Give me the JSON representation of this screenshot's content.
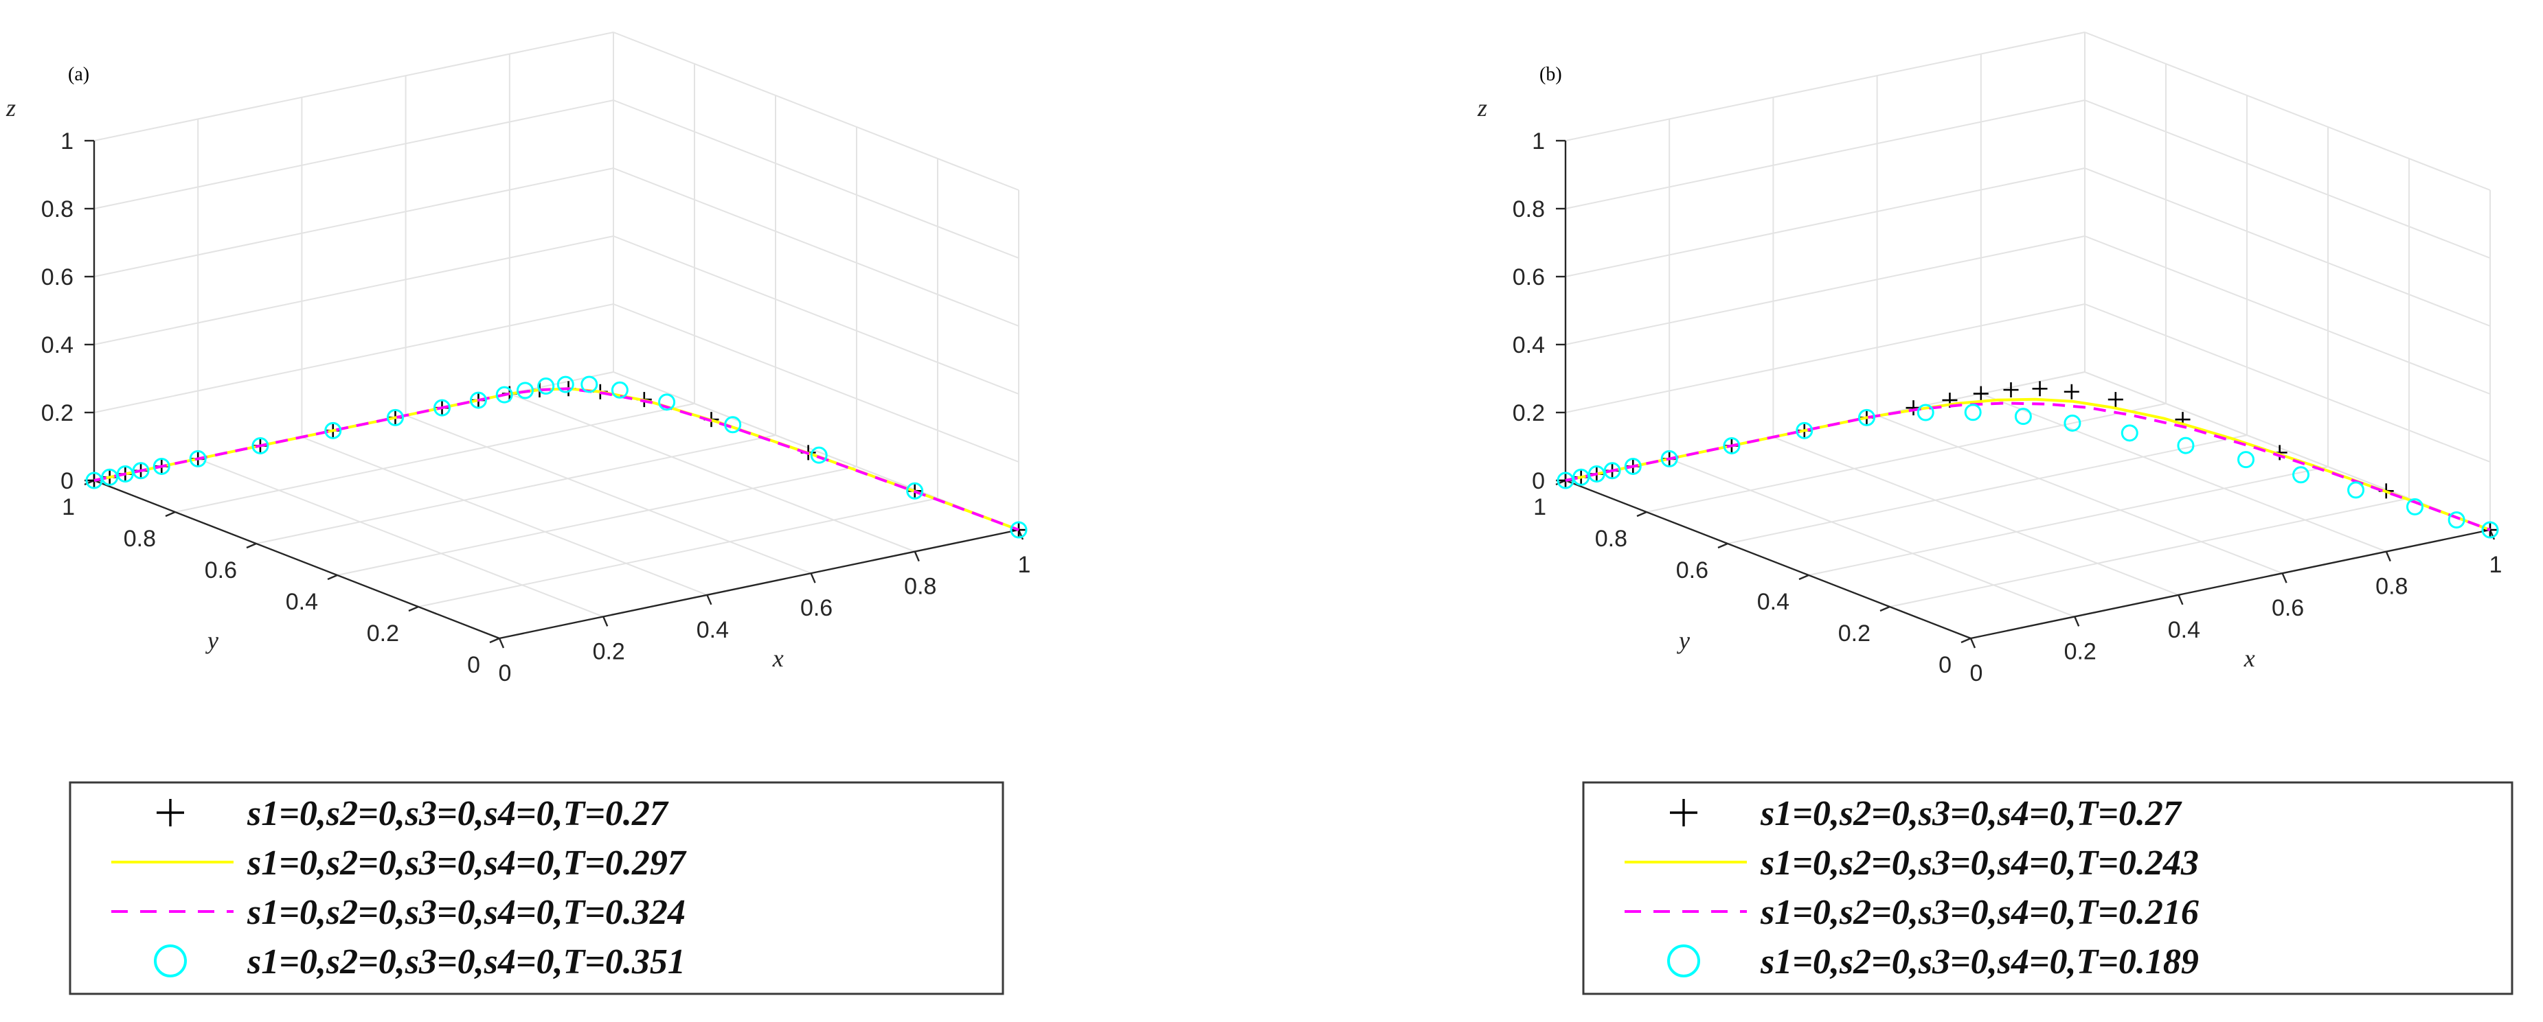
{
  "chart_data": [
    {
      "type": "line",
      "panel_label": "(a)",
      "xlabel": "x",
      "ylabel": "y",
      "zlabel": "z",
      "xlim": [
        0,
        1
      ],
      "ylim": [
        0,
        1
      ],
      "zlim": [
        0,
        1
      ],
      "x_ticks": [
        "0",
        "0.2",
        "0.4",
        "0.6",
        "0.8",
        "1"
      ],
      "y_ticks": [
        "0",
        "0.2",
        "0.4",
        "0.6",
        "0.8",
        "1"
      ],
      "z_ticks": [
        "0",
        "0.2",
        "0.4",
        "0.6",
        "0.8",
        "1"
      ],
      "grid": true,
      "legend_position": "below",
      "series": [
        {
          "name": "s1=0,s2=0,s3=0,s4=0,T=0.27",
          "marker": "plus",
          "color": "#000000",
          "x": [
            0.0,
            0.03,
            0.06,
            0.09,
            0.13,
            0.2,
            0.32,
            0.46,
            0.58,
            0.67,
            0.74,
            0.8,
            0.85,
            0.89,
            0.92,
            0.95,
            0.97,
            0.985,
            0.995,
            1.0
          ],
          "y": [
            1.0,
            1.0,
            1.0,
            1.0,
            1.0,
            1.0,
            1.0,
            1.0,
            1.0,
            1.0,
            1.0,
            1.0,
            0.99,
            0.97,
            0.93,
            0.86,
            0.72,
            0.5,
            0.25,
            0.0
          ],
          "z": [
            0,
            0,
            0,
            0,
            0,
            0,
            0,
            0,
            0,
            0,
            0,
            0,
            0,
            0,
            0,
            0,
            0,
            0,
            0,
            0
          ]
        },
        {
          "name": "s1=0,s2=0,s3=0,s4=0,T=0.297",
          "marker": "line",
          "color": "#ffff00",
          "x": [
            0.0,
            0.03,
            0.06,
            0.09,
            0.13,
            0.2,
            0.32,
            0.46,
            0.58,
            0.67,
            0.74,
            0.8,
            0.85,
            0.89,
            0.92,
            0.95,
            0.97,
            0.985,
            0.995,
            1.0
          ],
          "y": [
            1.0,
            1.0,
            1.0,
            1.0,
            1.0,
            1.0,
            1.0,
            1.0,
            1.0,
            1.0,
            1.0,
            1.0,
            0.99,
            0.97,
            0.93,
            0.85,
            0.7,
            0.47,
            0.22,
            0.0
          ],
          "z": [
            0,
            0,
            0,
            0,
            0,
            0,
            0,
            0,
            0,
            0,
            0,
            0,
            0,
            0,
            0,
            0,
            0,
            0,
            0,
            0
          ]
        },
        {
          "name": "s1=0,s2=0,s3=0,s4=0,T=0.324",
          "marker": "dash",
          "color": "#ff00ff",
          "x": [
            0.0,
            0.03,
            0.06,
            0.09,
            0.13,
            0.2,
            0.32,
            0.46,
            0.58,
            0.67,
            0.74,
            0.8,
            0.85,
            0.89,
            0.92,
            0.95,
            0.97,
            0.985,
            0.995,
            1.0
          ],
          "y": [
            1.0,
            1.0,
            1.0,
            1.0,
            1.0,
            1.0,
            1.0,
            1.0,
            1.0,
            1.0,
            1.0,
            1.0,
            0.99,
            0.97,
            0.92,
            0.84,
            0.68,
            0.45,
            0.2,
            0.0
          ],
          "z": [
            0,
            0,
            0,
            0,
            0,
            0,
            0,
            0,
            0,
            0,
            0,
            0,
            0,
            0,
            0,
            0,
            0,
            0,
            0,
            0
          ]
        },
        {
          "name": "s1=0,s2=0,s3=0,s4=0,T=0.351",
          "marker": "circle",
          "color": "#00ffff",
          "x": [
            0.0,
            0.03,
            0.06,
            0.09,
            0.13,
            0.2,
            0.32,
            0.46,
            0.58,
            0.67,
            0.74,
            0.79,
            0.83,
            0.87,
            0.9,
            0.93,
            0.95,
            0.97,
            0.98,
            0.99,
            0.995,
            1.0
          ],
          "y": [
            1.0,
            1.0,
            1.0,
            1.0,
            1.0,
            1.0,
            1.0,
            1.0,
            1.0,
            1.0,
            1.0,
            1.0,
            1.0,
            1.0,
            0.99,
            0.97,
            0.92,
            0.83,
            0.68,
            0.48,
            0.25,
            0.0
          ],
          "z": [
            0,
            0,
            0,
            0,
            0,
            0,
            0,
            0,
            0,
            0,
            0,
            0,
            0,
            0,
            0,
            0,
            0,
            0,
            0,
            0,
            0,
            0
          ]
        }
      ]
    },
    {
      "type": "line",
      "panel_label": "(b)",
      "xlabel": "x",
      "ylabel": "y",
      "zlabel": "z",
      "xlim": [
        0,
        1
      ],
      "ylim": [
        0,
        1
      ],
      "zlim": [
        0,
        1
      ],
      "x_ticks": [
        "0",
        "0.2",
        "0.4",
        "0.6",
        "0.8",
        "1"
      ],
      "y_ticks": [
        "0",
        "0.2",
        "0.4",
        "0.6",
        "0.8",
        "1"
      ],
      "z_ticks": [
        "0",
        "0.2",
        "0.4",
        "0.6",
        "0.8",
        "1"
      ],
      "grid": true,
      "legend_position": "below",
      "series": [
        {
          "name": "s1=0,s2=0,s3=0,s4=0,T=0.27",
          "marker": "plus",
          "color": "#000000",
          "x": [
            0.0,
            0.03,
            0.06,
            0.09,
            0.13,
            0.2,
            0.32,
            0.46,
            0.58,
            0.67,
            0.74,
            0.8,
            0.85,
            0.89,
            0.92,
            0.95,
            0.97,
            0.985,
            0.995,
            1.0
          ],
          "y": [
            1.0,
            1.0,
            1.0,
            1.0,
            1.0,
            1.0,
            1.0,
            1.0,
            1.0,
            1.0,
            1.0,
            1.0,
            0.99,
            0.97,
            0.93,
            0.86,
            0.72,
            0.5,
            0.25,
            0.0
          ],
          "z": [
            0,
            0,
            0,
            0,
            0,
            0,
            0,
            0,
            0,
            0,
            0,
            0,
            0,
            0,
            0,
            0,
            0,
            0,
            0,
            0
          ]
        },
        {
          "name": "s1=0,s2=0,s3=0,s4=0,T=0.243",
          "marker": "line",
          "color": "#ffff00",
          "x": [
            0.0,
            0.03,
            0.06,
            0.09,
            0.13,
            0.2,
            0.32,
            0.46,
            0.58,
            0.67,
            0.74,
            0.8,
            0.85,
            0.89,
            0.92,
            0.95,
            0.97,
            0.985,
            0.995,
            1.0
          ],
          "y": [
            1.0,
            1.0,
            1.0,
            1.0,
            1.0,
            1.0,
            1.0,
            1.0,
            1.0,
            0.99,
            0.98,
            0.96,
            0.93,
            0.89,
            0.83,
            0.74,
            0.6,
            0.42,
            0.2,
            0.0
          ],
          "z": [
            0,
            0,
            0,
            0,
            0,
            0,
            0,
            0,
            0,
            0,
            0,
            0,
            0,
            0,
            0,
            0,
            0,
            0,
            0,
            0
          ]
        },
        {
          "name": "s1=0,s2=0,s3=0,s4=0,T=0.216",
          "marker": "dash",
          "color": "#ff00ff",
          "x": [
            0.0,
            0.03,
            0.06,
            0.09,
            0.13,
            0.2,
            0.32,
            0.46,
            0.58,
            0.67,
            0.74,
            0.8,
            0.85,
            0.89,
            0.92,
            0.95,
            0.97,
            0.985,
            0.995,
            1.0
          ],
          "y": [
            1.0,
            1.0,
            1.0,
            1.0,
            1.0,
            1.0,
            1.0,
            1.0,
            1.0,
            0.99,
            0.97,
            0.94,
            0.9,
            0.85,
            0.78,
            0.68,
            0.54,
            0.37,
            0.18,
            0.0
          ],
          "z": [
            0,
            0,
            0,
            0,
            0,
            0,
            0,
            0,
            0,
            0,
            0,
            0,
            0,
            0,
            0,
            0,
            0,
            0,
            0,
            0
          ]
        },
        {
          "name": "s1=0,s2=0,s3=0,s4=0,T=0.189",
          "marker": "circle",
          "color": "#00ffff",
          "x": [
            0.0,
            0.03,
            0.06,
            0.09,
            0.13,
            0.2,
            0.32,
            0.46,
            0.58,
            0.67,
            0.73,
            0.78,
            0.82,
            0.86,
            0.89,
            0.92,
            0.94,
            0.96,
            0.98,
            0.99,
            1.0
          ],
          "y": [
            1.0,
            1.0,
            1.0,
            1.0,
            1.0,
            1.0,
            1.0,
            1.0,
            1.0,
            0.97,
            0.93,
            0.87,
            0.8,
            0.71,
            0.61,
            0.5,
            0.39,
            0.28,
            0.16,
            0.07,
            0.0
          ],
          "z": [
            0,
            0,
            0,
            0,
            0,
            0,
            0,
            0,
            0,
            0,
            0,
            0,
            0,
            0,
            0,
            0,
            0,
            0,
            0,
            0,
            0
          ]
        }
      ]
    }
  ]
}
